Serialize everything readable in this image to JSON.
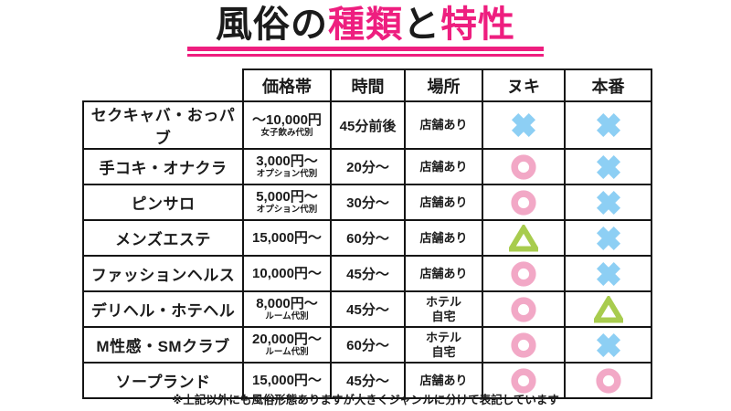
{
  "title": {
    "segments": [
      {
        "text": "風俗の",
        "pink": false
      },
      {
        "text": "種類",
        "pink": true
      },
      {
        "text": "と",
        "pink": false
      },
      {
        "text": "特性",
        "pink": true
      }
    ]
  },
  "table": {
    "col_headers": [
      "価格帯",
      "時間",
      "場所",
      "ヌキ",
      "本番"
    ],
    "rows": [
      {
        "name": "セクキャバ・おっパブ",
        "price": "〜10,000円",
        "price_note": "女子飲み代別",
        "time": "45分前後",
        "place": "店舗あり",
        "nuki": "cross",
        "honban": "cross"
      },
      {
        "name": "手コキ・オナクラ",
        "price": "3,000円〜",
        "price_note": "オプション代別",
        "time": "20分〜",
        "place": "店舗あり",
        "nuki": "circle",
        "honban": "cross"
      },
      {
        "name": "ピンサロ",
        "price": "5,000円〜",
        "price_note": "オプション代別",
        "time": "30分〜",
        "place": "店舗あり",
        "nuki": "circle",
        "honban": "cross"
      },
      {
        "name": "メンズエステ",
        "price": "15,000円〜",
        "price_note": "",
        "time": "60分〜",
        "place": "店舗あり",
        "nuki": "triangle",
        "honban": "cross"
      },
      {
        "name": "ファッションヘルス",
        "price": "10,000円〜",
        "price_note": "",
        "time": "45分〜",
        "place": "店舗あり",
        "nuki": "circle",
        "honban": "cross"
      },
      {
        "name": "デリヘル・ホテヘル",
        "price": "8,000円〜",
        "price_note": "ルーム代別",
        "time": "45分〜",
        "place": "ホテル\n自宅",
        "nuki": "circle",
        "honban": "triangle"
      },
      {
        "name": "M性感・SMクラブ",
        "price": "20,000円〜",
        "price_note": "ルーム代別",
        "time": "60分〜",
        "place": "ホテル\n自宅",
        "nuki": "circle",
        "honban": "cross"
      },
      {
        "name": "ソープランド",
        "price": "15,000円〜",
        "price_note": "",
        "time": "45分〜",
        "place": "店舗あり",
        "nuki": "circle",
        "honban": "circle"
      }
    ]
  },
  "footer": {
    "note": "※上記以外にも風俗形態ありますが大きくジャンルに分けて表記しています"
  },
  "colors": {
    "accent_pink": "#ee1e7f",
    "symbol_circle": "#f2a8c6",
    "symbol_cross": "#8dcff4",
    "symbol_triangle": "#a8cc4e",
    "border_black": "#141414"
  },
  "chart_data": {
    "type": "table",
    "title": "風俗の種類と特性",
    "columns": [
      "",
      "価格帯",
      "時間",
      "場所",
      "ヌキ",
      "本番"
    ],
    "rows": [
      [
        "セクキャバ・おっパブ",
        "〜10,000円（女子飲み代別）",
        "45分前後",
        "店舗あり",
        "✕",
        "✕"
      ],
      [
        "手コキ・オナクラ",
        "3,000円〜（オプション代別）",
        "20分〜",
        "店舗あり",
        "○",
        "✕"
      ],
      [
        "ピンサロ",
        "5,000円〜（オプション代別）",
        "30分〜",
        "店舗あり",
        "○",
        "✕"
      ],
      [
        "メンズエステ",
        "15,000円〜",
        "60分〜",
        "店舗あり",
        "△",
        "✕"
      ],
      [
        "ファッションヘルス",
        "10,000円〜",
        "45分〜",
        "店舗あり",
        "○",
        "✕"
      ],
      [
        "デリヘル・ホテヘル",
        "8,000円〜（ルーム代別）",
        "45分〜",
        "ホテル・自宅",
        "○",
        "△"
      ],
      [
        "M性感・SMクラブ",
        "20,000円〜（ルーム代別）",
        "60分〜",
        "ホテル・自宅",
        "○",
        "✕"
      ],
      [
        "ソープランド",
        "15,000円〜",
        "45分〜",
        "店舗あり",
        "○",
        "○"
      ]
    ],
    "legend_symbols": [
      "○",
      "✕",
      "△"
    ]
  }
}
